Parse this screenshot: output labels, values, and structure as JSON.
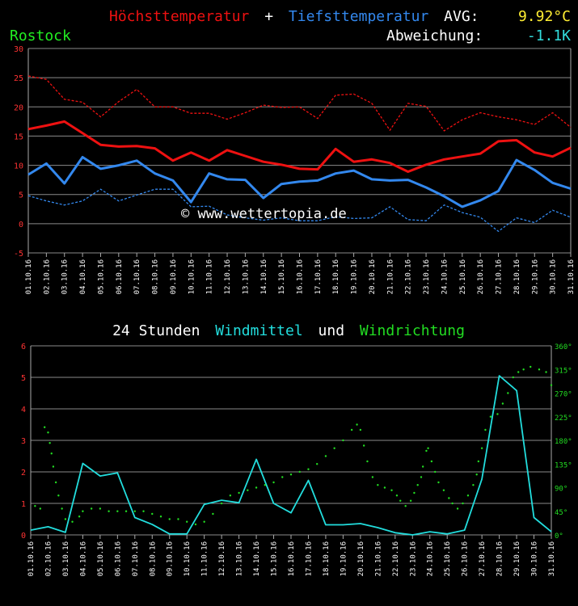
{
  "header": {
    "high_label": "Höchsttemperatur",
    "plus": "+",
    "low_label": "Tiefsttemperatur",
    "avg_label": "AVG:",
    "avg_value": "9.92°C",
    "station": "Rostock",
    "deviation_label": "Abweichung:",
    "deviation_value": "-1.1K"
  },
  "watermark": "© www.wettertopia.de",
  "colors": {
    "high": "#ee1111",
    "low": "#3388ee",
    "wind": "#22dddd",
    "direction": "#22dd22",
    "avg": "#ffee33",
    "station": "#22ee22",
    "deviation": "#33dddd"
  },
  "dates": [
    "01.10.16",
    "02.10.16",
    "03.10.16",
    "04.10.16",
    "05.10.16",
    "06.10.16",
    "07.10.16",
    "08.10.16",
    "09.10.16",
    "10.10.16",
    "11.10.16",
    "12.10.16",
    "13.10.16",
    "14.10.16",
    "15.10.16",
    "16.10.16",
    "17.10.16",
    "18.10.16",
    "19.10.16",
    "20.10.16",
    "21.10.16",
    "22.10.16",
    "23.10.16",
    "24.10.16",
    "25.10.16",
    "26.10.16",
    "27.10.16",
    "28.10.16",
    "29.10.16",
    "30.10.16",
    "31.10.16"
  ],
  "chart_data": [
    {
      "type": "line",
      "ylim": [
        -5,
        30
      ],
      "yticks": [
        "-5",
        "0",
        "5",
        "10",
        "15",
        "20",
        "25",
        "30"
      ],
      "yvalues": [
        -5,
        0,
        5,
        10,
        15,
        20,
        25,
        30
      ],
      "grid": true,
      "series": [
        {
          "name": "Höchsttemperatur",
          "style": "solid",
          "values": [
            16.2,
            16.8,
            17.5,
            15.5,
            13.5,
            13.2,
            13.3,
            12.9,
            10.8,
            12.2,
            10.8,
            12.6,
            11.6,
            10.6,
            10.1,
            9.4,
            9.3,
            12.8,
            10.6,
            11.0,
            10.4,
            8.9,
            10.1,
            11.0,
            11.5,
            12.0,
            14.1,
            14.3,
            12.2,
            11.5,
            13.0
          ]
        },
        {
          "name": "Tiefsttemperatur",
          "style": "solid",
          "values": [
            8.4,
            10.3,
            6.9,
            11.4,
            9.4,
            10.0,
            10.8,
            8.6,
            7.4,
            3.7,
            8.6,
            7.6,
            7.5,
            4.4,
            6.8,
            7.2,
            7.4,
            8.6,
            9.1,
            7.6,
            7.4,
            7.5,
            6.2,
            4.7,
            2.9,
            4.0,
            5.6,
            10.9,
            9.2,
            7.0,
            6.0
          ]
        },
        {
          "style": "dashed",
          "values": [
            25.3,
            24.7,
            21.3,
            20.8,
            18.3,
            20.9,
            23.0,
            20.0,
            20.0,
            18.9,
            18.9,
            17.9,
            19.0,
            20.3,
            19.9,
            20.0,
            18.0,
            22.0,
            22.2,
            20.6,
            16.0,
            20.6,
            20.1,
            15.9,
            17.8,
            19.0,
            18.3,
            17.8,
            17.0,
            19.0,
            16.5
          ]
        },
        {
          "style": "dashed",
          "values": [
            4.8,
            3.9,
            3.2,
            3.9,
            5.9,
            3.9,
            4.9,
            5.9,
            5.9,
            2.9,
            3.0,
            1.5,
            1.0,
            0.6,
            1.0,
            0.5,
            0.5,
            1.2,
            0.9,
            1.0,
            2.9,
            0.7,
            0.5,
            3.2,
            1.9,
            1.1,
            -1.3,
            1.0,
            0.2,
            2.3,
            1.1
          ]
        }
      ]
    },
    {
      "type": "line",
      "title": {
        "part1": "24 Stunden",
        "part2": "Windmittel",
        "part3": "und",
        "part4": "Windrichtung"
      },
      "ylim": [
        0,
        6
      ],
      "yticks": [
        "0",
        "1",
        "2",
        "3",
        "4",
        "5",
        "6"
      ],
      "yvalues": [
        0,
        1,
        2,
        3,
        4,
        5,
        6
      ],
      "y2lim": [
        0,
        360
      ],
      "y2ticks": [
        "0°",
        "45°",
        "90°",
        "135°",
        "180°",
        "225°",
        "270°",
        "315°",
        "360°"
      ],
      "y2values": [
        0,
        45,
        90,
        135,
        180,
        225,
        270,
        315,
        360
      ],
      "grid": true,
      "series": [
        {
          "name": "Windmittel",
          "style": "solid",
          "values": [
            0.15,
            0.26,
            0.08,
            2.27,
            1.87,
            1.97,
            0.55,
            0.33,
            0.03,
            0.03,
            0.97,
            1.1,
            1.02,
            2.4,
            1.0,
            0.7,
            1.73,
            0.32,
            0.32,
            0.36,
            0.23,
            0.07,
            0.0,
            0.1,
            0.03,
            0.15,
            1.77,
            5.05,
            4.58,
            0.55,
            0.1
          ]
        },
        {
          "name": "Windrichtung",
          "style": "dots",
          "points": [
            [
              0.25,
              55
            ],
            [
              0.55,
              50
            ],
            [
              0.8,
              205
            ],
            [
              1.0,
              195
            ],
            [
              1.1,
              175
            ],
            [
              1.2,
              155
            ],
            [
              1.3,
              130
            ],
            [
              1.45,
              100
            ],
            [
              1.6,
              75
            ],
            [
              1.8,
              50
            ],
            [
              2.0,
              30
            ],
            [
              2.4,
              25
            ],
            [
              2.8,
              35
            ],
            [
              3.0,
              45
            ],
            [
              3.5,
              50
            ],
            [
              4.0,
              50
            ],
            [
              4.5,
              45
            ],
            [
              5.0,
              45
            ],
            [
              5.5,
              45
            ],
            [
              6.0,
              45
            ],
            [
              6.5,
              45
            ],
            [
              7.0,
              40
            ],
            [
              7.5,
              35
            ],
            [
              8.0,
              30
            ],
            [
              8.5,
              30
            ],
            [
              9.0,
              25
            ],
            [
              9.5,
              20
            ],
            [
              10.0,
              25
            ],
            [
              10.5,
              40
            ],
            [
              11.0,
              60
            ],
            [
              11.5,
              75
            ],
            [
              12.0,
              80
            ],
            [
              12.5,
              85
            ],
            [
              13.0,
              90
            ],
            [
              13.5,
              95
            ],
            [
              14.0,
              100
            ],
            [
              14.5,
              110
            ],
            [
              15.0,
              115
            ],
            [
              15.5,
              120
            ],
            [
              16.0,
              125
            ],
            [
              16.5,
              135
            ],
            [
              17.0,
              150
            ],
            [
              17.5,
              165
            ],
            [
              18.0,
              180
            ],
            [
              18.5,
              200
            ],
            [
              18.8,
              210
            ],
            [
              19.0,
              200
            ],
            [
              19.2,
              170
            ],
            [
              19.4,
              140
            ],
            [
              19.7,
              110
            ],
            [
              20.0,
              95
            ],
            [
              20.4,
              90
            ],
            [
              20.8,
              85
            ],
            [
              21.1,
              75
            ],
            [
              21.3,
              65
            ],
            [
              21.6,
              55
            ],
            [
              21.9,
              65
            ],
            [
              22.1,
              80
            ],
            [
              22.3,
              95
            ],
            [
              22.5,
              110
            ],
            [
              22.6,
              130
            ],
            [
              22.8,
              160
            ],
            [
              22.9,
              165
            ],
            [
              23.1,
              140
            ],
            [
              23.3,
              120
            ],
            [
              23.5,
              100
            ],
            [
              23.8,
              85
            ],
            [
              24.1,
              70
            ],
            [
              24.3,
              60
            ],
            [
              24.6,
              50
            ],
            [
              24.9,
              60
            ],
            [
              25.2,
              75
            ],
            [
              25.5,
              95
            ],
            [
              25.7,
              115
            ],
            [
              25.8,
              140
            ],
            [
              26.0,
              165
            ],
            [
              26.2,
              200
            ],
            [
              26.5,
              225
            ],
            [
              26.9,
              230
            ],
            [
              27.2,
              250
            ],
            [
              27.5,
              270
            ],
            [
              27.8,
              300
            ],
            [
              28.1,
              310
            ],
            [
              28.4,
              315
            ],
            [
              28.8,
              320
            ],
            [
              29.3,
              315
            ],
            [
              29.7,
              310
            ],
            [
              30.0,
              285
            ]
          ]
        }
      ]
    }
  ]
}
